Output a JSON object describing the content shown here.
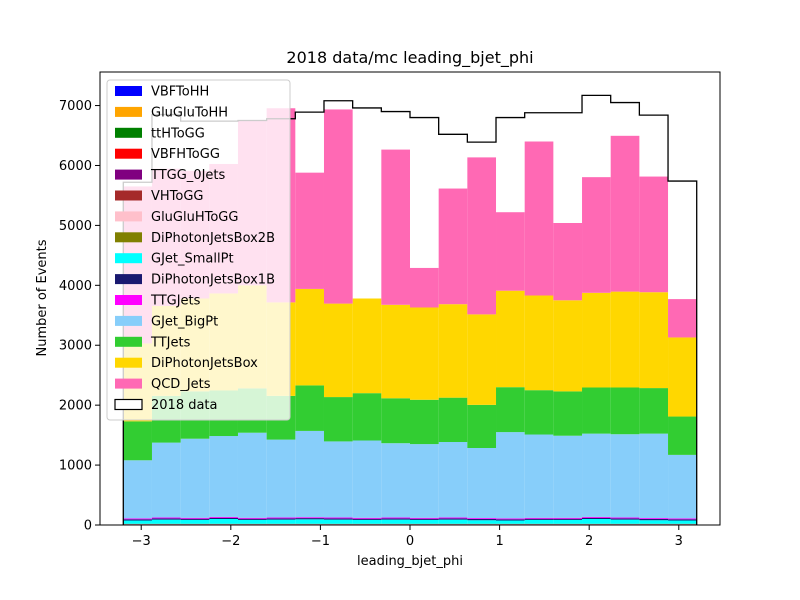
{
  "chart_data": {
    "type": "bar",
    "stacked": true,
    "title": "2018 data/mc leading_bjet_phi",
    "xlabel": "leading_bjet_phi",
    "ylabel": "Number of Events",
    "xlim": [
      -3.46,
      3.46
    ],
    "ylim": [
      0,
      7560
    ],
    "xticks": [
      -3,
      -2,
      -1,
      0,
      1,
      2,
      3
    ],
    "xtick_labels": [
      "−3",
      "−2",
      "−1",
      "0",
      "1",
      "2",
      "3"
    ],
    "yticks": [
      0,
      1000,
      2000,
      3000,
      4000,
      5000,
      6000,
      7000
    ],
    "bin_edges": [
      -3.2,
      -2.88,
      -2.56,
      -2.24,
      -1.92,
      -1.6,
      -1.28,
      -0.96,
      -0.64,
      -0.32,
      0.0,
      0.32,
      0.64,
      0.96,
      1.28,
      1.6,
      1.92,
      2.24,
      2.56,
      2.88,
      3.2
    ],
    "legend_position": "upper-left",
    "series": [
      {
        "name": "VBFToHH",
        "color": "#0000ff",
        "values": [
          0,
          0,
          0,
          0,
          0,
          0,
          0,
          0,
          0,
          0,
          0,
          0,
          0,
          0,
          0,
          0,
          0,
          0,
          0,
          0
        ]
      },
      {
        "name": "GluGluToHH",
        "color": "#ffa500",
        "values": [
          0,
          0,
          0,
          0,
          0,
          0,
          0,
          0,
          0,
          0,
          0,
          0,
          0,
          0,
          0,
          0,
          0,
          0,
          0,
          0
        ]
      },
      {
        "name": "ttHToGG",
        "color": "#008000",
        "values": [
          0,
          0,
          0,
          0,
          0,
          0,
          0,
          0,
          0,
          0,
          0,
          0,
          0,
          0,
          0,
          0,
          0,
          0,
          0,
          0
        ]
      },
      {
        "name": "VBFHToGG",
        "color": "#ff0000",
        "values": [
          0,
          0,
          0,
          0,
          0,
          0,
          0,
          0,
          0,
          0,
          0,
          0,
          0,
          0,
          0,
          0,
          0,
          0,
          0,
          0
        ]
      },
      {
        "name": "TTGG_0Jets",
        "color": "#800080",
        "values": [
          12,
          12,
          12,
          12,
          12,
          12,
          12,
          12,
          12,
          12,
          12,
          12,
          12,
          12,
          12,
          12,
          12,
          12,
          12,
          12
        ]
      },
      {
        "name": "VHToGG",
        "color": "#a52a2a",
        "values": [
          0,
          0,
          0,
          0,
          0,
          0,
          0,
          0,
          0,
          0,
          0,
          0,
          0,
          0,
          0,
          0,
          0,
          0,
          0,
          0
        ]
      },
      {
        "name": "GluGluHToGG",
        "color": "#ffc0cb",
        "values": [
          3,
          3,
          3,
          3,
          3,
          3,
          3,
          3,
          3,
          3,
          3,
          3,
          3,
          3,
          3,
          3,
          3,
          3,
          3,
          3
        ]
      },
      {
        "name": "DiPhotonJetsBox2B",
        "color": "#808000",
        "values": [
          5,
          5,
          5,
          5,
          5,
          5,
          5,
          5,
          5,
          5,
          5,
          5,
          5,
          5,
          5,
          5,
          5,
          5,
          5,
          5
        ]
      },
      {
        "name": "GJet_SmallPt",
        "color": "#00ffff",
        "values": [
          55,
          70,
          65,
          80,
          65,
          70,
          75,
          70,
          65,
          70,
          65,
          70,
          60,
          55,
          65,
          65,
          80,
          70,
          60,
          55
        ]
      },
      {
        "name": "DiPhotonJetsBox1B",
        "color": "#191970",
        "values": [
          20,
          20,
          20,
          20,
          20,
          20,
          20,
          20,
          20,
          20,
          20,
          20,
          20,
          20,
          20,
          20,
          20,
          20,
          20,
          20
        ]
      },
      {
        "name": "TTGJets",
        "color": "#ff00ff",
        "values": [
          15,
          15,
          15,
          15,
          15,
          15,
          15,
          15,
          15,
          15,
          15,
          15,
          15,
          15,
          15,
          15,
          15,
          15,
          15,
          15
        ]
      },
      {
        "name": "GJet_BigPt",
        "color": "#87cefa",
        "values": [
          970,
          1250,
          1320,
          1350,
          1420,
          1300,
          1440,
          1270,
          1290,
          1240,
          1230,
          1260,
          1170,
          1440,
          1390,
          1370,
          1390,
          1390,
          1410,
          1060
        ]
      },
      {
        "name": "TTJets",
        "color": "#32cd32",
        "values": [
          650,
          780,
          790,
          760,
          740,
          730,
          760,
          740,
          790,
          750,
          740,
          740,
          720,
          750,
          740,
          740,
          770,
          780,
          760,
          640
        ]
      },
      {
        "name": "DiPhotonJetsBox",
        "color": "#ffd700",
        "values": [
          1300,
          1500,
          1550,
          1620,
          1720,
          1560,
          1610,
          1560,
          1580,
          1560,
          1540,
          1560,
          1510,
          1610,
          1580,
          1520,
          1580,
          1600,
          1600,
          1320
        ]
      },
      {
        "name": "QCD_Jets",
        "color": "#ff69b4",
        "values": [
          2620,
          2290,
          2130,
          2160,
          2760,
          3240,
          1940,
          3240,
          0,
          2590,
          660,
          1930,
          2620,
          1310,
          2570,
          1290,
          1930,
          2600,
          1930,
          640
        ]
      }
    ],
    "data_series": {
      "name": "2018 data",
      "color": "#000000",
      "values": [
        5720,
        6850,
        6740,
        6740,
        6750,
        6780,
        6890,
        7080,
        6960,
        6900,
        6800,
        6520,
        6390,
        6800,
        6880,
        6880,
        7170,
        7050,
        6840,
        5740
      ]
    }
  }
}
